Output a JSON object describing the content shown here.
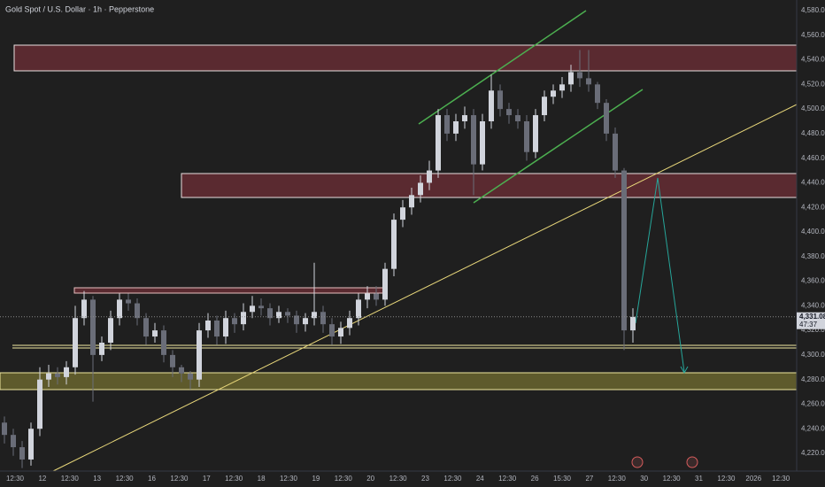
{
  "chart_data": {
    "type": "candlestick",
    "title": "Gold Spot / U.S. Dollar · 1h · Pepperstone",
    "up_color": "#d1d4dc",
    "down_color": "#6a6d78",
    "ylim": [
      4220,
      4580
    ],
    "yticks": [
      {
        "value": 4580,
        "label": "4,580.00"
      },
      {
        "value": 4560,
        "label": "4,560.00"
      },
      {
        "value": 4540,
        "label": "4,540.00"
      },
      {
        "value": 4520,
        "label": "4,520.00"
      },
      {
        "value": 4500,
        "label": "4,500.00"
      },
      {
        "value": 4480,
        "label": "4,480.00"
      },
      {
        "value": 4460,
        "label": "4,460.00"
      },
      {
        "value": 4440,
        "label": "4,440.00"
      },
      {
        "value": 4420,
        "label": "4,420.00"
      },
      {
        "value": 4400,
        "label": "4,400.00"
      },
      {
        "value": 4380,
        "label": "4,380.00"
      },
      {
        "value": 4360,
        "label": "4,360.00"
      },
      {
        "value": 4340,
        "label": "4,340.00"
      },
      {
        "value": 4320,
        "label": "4,320.00"
      },
      {
        "value": 4300,
        "label": "4,300.00"
      },
      {
        "value": 4280,
        "label": "4,280.00"
      },
      {
        "value": 4260,
        "label": "4,260.00"
      },
      {
        "value": 4240,
        "label": "4,240.00"
      },
      {
        "value": 4220,
        "label": "4,220.00"
      }
    ],
    "grid": false,
    "time_labels": [
      "12:30",
      "12",
      "12:30",
      "13",
      "12:30",
      "16",
      "12:30",
      "17",
      "12:30",
      "18",
      "12:30",
      "19",
      "12:30",
      "20",
      "12:30",
      "23",
      "12:30",
      "24",
      "12:30",
      "26",
      "15:30",
      "27",
      "12:30",
      "30",
      "12:30",
      "31",
      "12:30",
      "2026",
      "12:30"
    ],
    "last_price": {
      "value": 4331.08,
      "label": "4,331.08"
    },
    "countdown": "47:37",
    "open": [
      4245,
      4235,
      4225,
      4215,
      4240,
      4280,
      4285,
      4282,
      4290,
      4330,
      4345,
      4300,
      4310,
      4330,
      4345,
      4342,
      4330,
      4315,
      4320,
      4300,
      4290,
      4285,
      4280,
      4320,
      4328,
      4315,
      4330,
      4325,
      4335,
      4340,
      4338,
      4330,
      4335,
      4332,
      4325,
      4330,
      4335,
      4325,
      4315,
      4322,
      4330,
      4345,
      4350,
      4345,
      4370,
      4410,
      4420,
      4430,
      4440,
      4450,
      4495,
      4480,
      4490,
      4495,
      4455,
      4490,
      4515,
      4500,
      4495,
      4490,
      4465,
      4495,
      4510,
      4515,
      4520,
      4530,
      4525,
      4520,
      4505,
      4480,
      4450,
      4320
    ],
    "high": [
      4250,
      4240,
      4230,
      4245,
      4290,
      4292,
      4290,
      4295,
      4340,
      4352,
      4348,
      4315,
      4336,
      4350,
      4350,
      4346,
      4334,
      4326,
      4324,
      4304,
      4292,
      4287,
      4326,
      4334,
      4332,
      4336,
      4334,
      4342,
      4348,
      4346,
      4342,
      4340,
      4338,
      4336,
      4334,
      4375,
      4340,
      4330,
      4327,
      4336,
      4350,
      4356,
      4356,
      4375,
      4415,
      4426,
      4436,
      4446,
      4458,
      4500,
      4500,
      4496,
      4502,
      4500,
      4496,
      4528,
      4520,
      4505,
      4500,
      4495,
      4500,
      4515,
      4520,
      4526,
      4536,
      4548,
      4548,
      4522,
      4508,
      4485,
      4452,
      4338
    ],
    "low": [
      4228,
      4218,
      4208,
      4210,
      4234,
      4274,
      4276,
      4276,
      4284,
      4324,
      4262,
      4295,
      4304,
      4324,
      4336,
      4324,
      4308,
      4310,
      4294,
      4282,
      4278,
      4272,
      4274,
      4314,
      4308,
      4309,
      4318,
      4320,
      4330,
      4332,
      4324,
      4326,
      4326,
      4318,
      4319,
      4324,
      4318,
      4308,
      4309,
      4316,
      4324,
      4338,
      4340,
      4340,
      4364,
      4404,
      4414,
      4424,
      4434,
      4444,
      4474,
      4474,
      4484,
      4430,
      4450,
      4484,
      4494,
      4488,
      4484,
      4458,
      4460,
      4490,
      4504,
      4509,
      4514,
      4518,
      4514,
      4500,
      4474,
      4444,
      4304,
      4310
    ],
    "close": [
      4235,
      4225,
      4215,
      4240,
      4280,
      4285,
      4282,
      4290,
      4330,
      4345,
      4300,
      4310,
      4330,
      4345,
      4342,
      4330,
      4315,
      4320,
      4300,
      4290,
      4285,
      4280,
      4320,
      4328,
      4315,
      4330,
      4325,
      4335,
      4340,
      4338,
      4330,
      4335,
      4332,
      4325,
      4330,
      4335,
      4325,
      4315,
      4322,
      4330,
      4345,
      4350,
      4345,
      4370,
      4410,
      4420,
      4430,
      4440,
      4450,
      4495,
      4480,
      4490,
      4495,
      4455,
      4490,
      4515,
      4500,
      4495,
      4490,
      4465,
      4495,
      4510,
      4515,
      4520,
      4530,
      4525,
      4520,
      4505,
      4480,
      4450,
      4320,
      4331
    ]
  }
}
